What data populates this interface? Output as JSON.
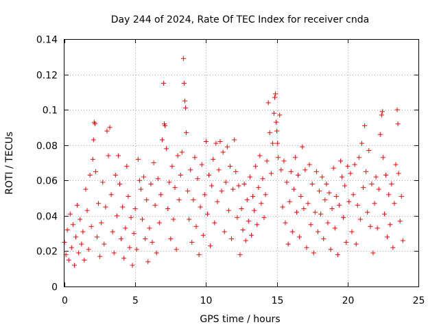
{
  "chart_data": {
    "type": "scatter",
    "title": "Day 244 of 2024, Rate Of TEC Index for receiver cnda",
    "xlabel": "GPS time / hours",
    "ylabel": "ROTI / TECUs",
    "xlim": [
      0,
      25
    ],
    "ylim": [
      0,
      0.14
    ],
    "xticks": [
      0,
      5,
      10,
      15,
      20,
      25
    ],
    "xtick_labels": [
      "0",
      "5",
      "10",
      "15",
      "20",
      "25"
    ],
    "yticks": [
      0,
      0.02,
      0.04,
      0.06,
      0.08,
      0.1,
      0.12,
      0.14
    ],
    "ytick_labels": [
      "0",
      "0.02",
      "0.04",
      "0.06",
      "0.08",
      "0.1",
      "0.12",
      "0.14"
    ],
    "grid": true,
    "marker": "+",
    "color": "#ff0000",
    "series": [
      {
        "name": "cnda",
        "points": [
          [
            0.0,
            0.025
          ],
          [
            0.1,
            0.018
          ],
          [
            0.2,
            0.032
          ],
          [
            0.3,
            0.015
          ],
          [
            0.4,
            0.041
          ],
          [
            0.5,
            0.022
          ],
          [
            0.6,
            0.035
          ],
          [
            0.7,
            0.012
          ],
          [
            0.8,
            0.028
          ],
          [
            0.9,
            0.046
          ],
          [
            1.0,
            0.019
          ],
          [
            1.1,
            0.038
          ],
          [
            1.2,
            0.024
          ],
          [
            1.3,
            0.031
          ],
          [
            1.4,
            0.015
          ],
          [
            1.5,
            0.055
          ],
          [
            1.6,
            0.043
          ],
          [
            1.7,
            0.021
          ],
          [
            1.8,
            0.063
          ],
          [
            1.9,
            0.034
          ],
          [
            2.0,
            0.072
          ],
          [
            2.05,
            0.083
          ],
          [
            2.1,
            0.093
          ],
          [
            2.15,
            0.092
          ],
          [
            2.2,
            0.065
          ],
          [
            2.3,
            0.028
          ],
          [
            2.4,
            0.047
          ],
          [
            2.5,
            0.017
          ],
          [
            2.6,
            0.036
          ],
          [
            2.7,
            0.059
          ],
          [
            2.8,
            0.024
          ],
          [
            2.9,
            0.045
          ],
          [
            3.0,
            0.088
          ],
          [
            3.1,
            0.074
          ],
          [
            3.2,
            0.09
          ],
          [
            3.3,
            0.052
          ],
          [
            3.4,
            0.031
          ],
          [
            3.5,
            0.019
          ],
          [
            3.6,
            0.063
          ],
          [
            3.7,
            0.04
          ],
          [
            3.8,
            0.074
          ],
          [
            3.9,
            0.058
          ],
          [
            4.0,
            0.027
          ],
          [
            4.1,
            0.045
          ],
          [
            4.2,
            0.016
          ],
          [
            4.3,
            0.033
          ],
          [
            4.4,
            0.068
          ],
          [
            4.5,
            0.051
          ],
          [
            4.6,
            0.022
          ],
          [
            4.7,
            0.039
          ],
          [
            4.8,
            0.012
          ],
          [
            4.9,
            0.03
          ],
          [
            5.0,
            0.044
          ],
          [
            5.1,
            0.021
          ],
          [
            5.2,
            0.072
          ],
          [
            5.3,
            0.06
          ],
          [
            5.4,
            0.055
          ],
          [
            5.5,
            0.038
          ],
          [
            5.6,
            0.062
          ],
          [
            5.7,
            0.027
          ],
          [
            5.8,
            0.049
          ],
          [
            5.9,
            0.014
          ],
          [
            6.0,
            0.033
          ],
          [
            6.1,
            0.058
          ],
          [
            6.2,
            0.025
          ],
          [
            6.3,
            0.07
          ],
          [
            6.4,
            0.046
          ],
          [
            6.5,
            0.019
          ],
          [
            6.6,
            0.061
          ],
          [
            6.7,
            0.036
          ],
          [
            6.8,
            0.052
          ],
          [
            6.9,
            0.083
          ],
          [
            7.0,
            0.115
          ],
          [
            7.05,
            0.092
          ],
          [
            7.1,
            0.091
          ],
          [
            7.2,
            0.078
          ],
          [
            7.3,
            0.044
          ],
          [
            7.4,
            0.059
          ],
          [
            7.5,
            0.027
          ],
          [
            7.6,
            0.068
          ],
          [
            7.7,
            0.038
          ],
          [
            7.8,
            0.056
          ],
          [
            7.9,
            0.021
          ],
          [
            8.0,
            0.074
          ],
          [
            8.1,
            0.049
          ],
          [
            8.2,
            0.063
          ],
          [
            8.3,
            0.076
          ],
          [
            8.4,
            0.129
          ],
          [
            8.45,
            0.115
          ],
          [
            8.5,
            0.105
          ],
          [
            8.55,
            0.101
          ],
          [
            8.6,
            0.087
          ],
          [
            8.7,
            0.054
          ],
          [
            8.8,
            0.038
          ],
          [
            8.9,
            0.066
          ],
          [
            9.0,
            0.025
          ],
          [
            9.1,
            0.049
          ],
          [
            9.2,
            0.073
          ],
          [
            9.3,
            0.034
          ],
          [
            9.4,
            0.061
          ],
          [
            9.5,
            0.018
          ],
          [
            9.6,
            0.045
          ],
          [
            9.7,
            0.069
          ],
          [
            9.8,
            0.029
          ],
          [
            9.9,
            0.052
          ],
          [
            10.0,
            0.082
          ],
          [
            10.1,
            0.041
          ],
          [
            10.2,
            0.063
          ],
          [
            10.3,
            0.023
          ],
          [
            10.4,
            0.057
          ],
          [
            10.5,
            0.072
          ],
          [
            10.6,
            0.036
          ],
          [
            10.7,
            0.081
          ],
          [
            10.8,
            0.048
          ],
          [
            10.9,
            0.066
          ],
          [
            11.0,
            0.082
          ],
          [
            11.1,
            0.054
          ],
          [
            11.2,
            0.076
          ],
          [
            11.3,
            0.031
          ],
          [
            11.4,
            0.059
          ],
          [
            11.5,
            0.079
          ],
          [
            11.6,
            0.043
          ],
          [
            11.7,
            0.068
          ],
          [
            11.8,
            0.027
          ],
          [
            11.9,
            0.055
          ],
          [
            12.0,
            0.083
          ],
          [
            12.1,
            0.065
          ],
          [
            12.2,
            0.039
          ],
          [
            12.3,
            0.057
          ],
          [
            12.4,
            0.018
          ],
          [
            12.5,
            0.044
          ],
          [
            12.6,
            0.032
          ],
          [
            12.7,
            0.058
          ],
          [
            12.8,
            0.026
          ],
          [
            12.9,
            0.049
          ],
          [
            13.0,
            0.037
          ],
          [
            13.1,
            0.062
          ],
          [
            13.2,
            0.029
          ],
          [
            13.3,
            0.051
          ],
          [
            13.4,
            0.043
          ],
          [
            13.5,
            0.068
          ],
          [
            13.6,
            0.035
          ],
          [
            13.7,
            0.056
          ],
          [
            13.8,
            0.074
          ],
          [
            13.9,
            0.047
          ],
          [
            14.0,
            0.061
          ],
          [
            14.1,
            0.039
          ],
          [
            14.2,
            0.052
          ],
          [
            14.3,
            0.071
          ],
          [
            14.4,
            0.104
          ],
          [
            14.5,
            0.087
          ],
          [
            14.6,
            0.064
          ],
          [
            14.7,
            0.081
          ],
          [
            14.8,
            0.098
          ],
          [
            14.85,
            0.107
          ],
          [
            14.9,
            0.109
          ],
          [
            14.95,
            0.093
          ],
          [
            15.0,
            0.088
          ],
          [
            15.05,
            0.081
          ],
          [
            15.1,
            0.073
          ],
          [
            15.2,
            0.097
          ],
          [
            15.3,
            0.066
          ],
          [
            15.4,
            0.045
          ],
          [
            15.5,
            0.071
          ],
          [
            15.6,
            0.036
          ],
          [
            15.7,
            0.059
          ],
          [
            15.8,
            0.024
          ],
          [
            15.9,
            0.048
          ],
          [
            16.0,
            0.065
          ],
          [
            16.1,
            0.031
          ],
          [
            16.2,
            0.055
          ],
          [
            16.3,
            0.073
          ],
          [
            16.4,
            0.042
          ],
          [
            16.5,
            0.063
          ],
          [
            16.6,
            0.028
          ],
          [
            16.7,
            0.051
          ],
          [
            16.8,
            0.079
          ],
          [
            16.9,
            0.044
          ],
          [
            17.0,
            0.066
          ],
          [
            17.1,
            0.022
          ],
          [
            17.2,
            0.047
          ],
          [
            17.3,
            0.069
          ],
          [
            17.4,
            0.035
          ],
          [
            17.5,
            0.058
          ],
          [
            17.6,
            0.019
          ],
          [
            17.7,
            0.042
          ],
          [
            17.8,
            0.065
          ],
          [
            17.9,
            0.031
          ],
          [
            18.0,
            0.054
          ],
          [
            18.1,
            0.041
          ],
          [
            18.2,
            0.062
          ],
          [
            18.3,
            0.027
          ],
          [
            18.4,
            0.049
          ],
          [
            18.5,
            0.058
          ],
          [
            18.6,
            0.036
          ],
          [
            18.7,
            0.053
          ],
          [
            18.8,
            0.021
          ],
          [
            18.9,
            0.044
          ],
          [
            19.0,
            0.067
          ],
          [
            19.1,
            0.033
          ],
          [
            19.2,
            0.051
          ],
          [
            19.3,
            0.018
          ],
          [
            19.4,
            0.046
          ],
          [
            19.5,
            0.071
          ],
          [
            19.6,
            0.062
          ],
          [
            19.7,
            0.039
          ],
          [
            19.8,
            0.057
          ],
          [
            19.9,
            0.025
          ],
          [
            20.0,
            0.068
          ],
          [
            20.1,
            0.048
          ],
          [
            20.2,
            0.064
          ],
          [
            20.3,
            0.031
          ],
          [
            20.4,
            0.052
          ],
          [
            20.5,
            0.069
          ],
          [
            20.6,
            0.024
          ],
          [
            20.7,
            0.046
          ],
          [
            20.8,
            0.073
          ],
          [
            20.9,
            0.038
          ],
          [
            21.0,
            0.081
          ],
          [
            21.1,
            0.056
          ],
          [
            21.2,
            0.091
          ],
          [
            21.3,
            0.065
          ],
          [
            21.4,
            0.042
          ],
          [
            21.5,
            0.077
          ],
          [
            21.6,
            0.034
          ],
          [
            21.7,
            0.058
          ],
          [
            21.8,
            0.019
          ],
          [
            21.9,
            0.047
          ],
          [
            22.0,
            0.062
          ],
          [
            22.1,
            0.033
          ],
          [
            22.2,
            0.055
          ],
          [
            22.3,
            0.086
          ],
          [
            22.4,
            0.097
          ],
          [
            22.45,
            0.099
          ],
          [
            22.5,
            0.073
          ],
          [
            22.6,
            0.041
          ],
          [
            22.7,
            0.063
          ],
          [
            22.8,
            0.028
          ],
          [
            22.9,
            0.052
          ],
          [
            23.0,
            0.035
          ],
          [
            23.1,
            0.058
          ],
          [
            23.2,
            0.022
          ],
          [
            23.3,
            0.047
          ],
          [
            23.4,
            0.069
          ],
          [
            23.5,
            0.1
          ],
          [
            23.55,
            0.092
          ],
          [
            23.6,
            0.064
          ],
          [
            23.7,
            0.037
          ],
          [
            23.8,
            0.051
          ],
          [
            23.9,
            0.026
          ]
        ]
      }
    ]
  }
}
